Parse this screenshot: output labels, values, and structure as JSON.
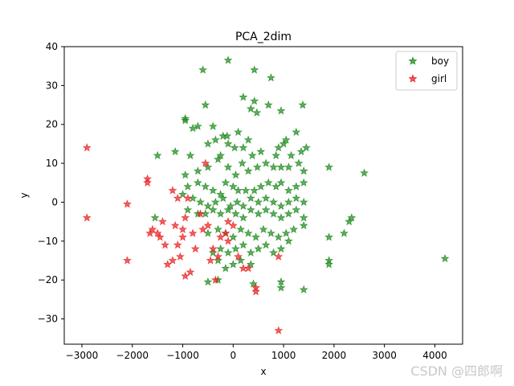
{
  "chart_data": {
    "type": "scatter",
    "title": "PCA_2dim",
    "xlabel": "x",
    "ylabel": "y",
    "xlim": [
      -3350,
      4550
    ],
    "ylim": [
      -36.5,
      40
    ],
    "xticks": [
      -3000,
      -2000,
      -1000,
      0,
      1000,
      2000,
      3000,
      4000
    ],
    "yticks": [
      -30,
      -20,
      -10,
      0,
      10,
      20,
      30,
      40
    ],
    "grid": false,
    "legend": "top-right",
    "marker": "star",
    "series": [
      {
        "name": "boy",
        "color": "#1e8a1e",
        "points": [
          [
            -100,
            36.5
          ],
          [
            420,
            34
          ],
          [
            -600,
            34
          ],
          [
            750,
            32
          ],
          [
            -950,
            21.5
          ],
          [
            200,
            27
          ],
          [
            350,
            24
          ],
          [
            420,
            26
          ],
          [
            -550,
            25
          ],
          [
            700,
            25
          ],
          [
            470,
            23
          ],
          [
            950,
            23.5
          ],
          [
            1380,
            25
          ],
          [
            -950,
            21
          ],
          [
            -800,
            19
          ],
          [
            -700,
            19.5
          ],
          [
            -400,
            19.5
          ],
          [
            -200,
            17
          ],
          [
            -100,
            15
          ],
          [
            100,
            18
          ],
          [
            300,
            16
          ],
          [
            1050,
            16
          ],
          [
            1250,
            18
          ],
          [
            1450,
            14
          ],
          [
            -1500,
            12
          ],
          [
            -1150,
            13
          ],
          [
            -850,
            12
          ],
          [
            -500,
            15
          ],
          [
            -350,
            16
          ],
          [
            -250,
            12
          ],
          [
            -120,
            17
          ],
          [
            30,
            14
          ],
          [
            200,
            14
          ],
          [
            380,
            12
          ],
          [
            550,
            13
          ],
          [
            850,
            12
          ],
          [
            900,
            14
          ],
          [
            1000,
            15
          ],
          [
            1150,
            12
          ],
          [
            1350,
            13
          ],
          [
            -950,
            7
          ],
          [
            -700,
            8
          ],
          [
            -500,
            9
          ],
          [
            -300,
            11
          ],
          [
            -100,
            9
          ],
          [
            50,
            7
          ],
          [
            180,
            10
          ],
          [
            300,
            8
          ],
          [
            480,
            9
          ],
          [
            650,
            10
          ],
          [
            800,
            9
          ],
          [
            950,
            9
          ],
          [
            1100,
            9
          ],
          [
            1300,
            10
          ],
          [
            1400,
            8
          ],
          [
            -900,
            4
          ],
          [
            -700,
            5
          ],
          [
            -550,
            4
          ],
          [
            -400,
            3
          ],
          [
            -250,
            2
          ],
          [
            -150,
            5
          ],
          [
            0,
            4
          ],
          [
            100,
            3
          ],
          [
            250,
            3
          ],
          [
            420,
            3
          ],
          [
            550,
            4
          ],
          [
            700,
            5
          ],
          [
            850,
            4
          ],
          [
            950,
            5
          ],
          [
            1100,
            3
          ],
          [
            1250,
            4
          ],
          [
            1400,
            5
          ],
          [
            1900,
            9
          ],
          [
            2600,
            7.5
          ],
          [
            -1000,
            2
          ],
          [
            -800,
            1
          ],
          [
            -650,
            0
          ],
          [
            -500,
            -1
          ],
          [
            -350,
            0
          ],
          [
            -200,
            1
          ],
          [
            -50,
            -1
          ],
          [
            80,
            0
          ],
          [
            200,
            -1
          ],
          [
            350,
            1
          ],
          [
            500,
            0
          ],
          [
            650,
            1
          ],
          [
            800,
            0
          ],
          [
            950,
            -1
          ],
          [
            1100,
            0
          ],
          [
            1250,
            1
          ],
          [
            1400,
            0
          ],
          [
            -1550,
            -4
          ],
          [
            -900,
            -2
          ],
          [
            -700,
            -3
          ],
          [
            -550,
            -3
          ],
          [
            -400,
            -2
          ],
          [
            -250,
            -3
          ],
          [
            -100,
            -2
          ],
          [
            50,
            -3
          ],
          [
            200,
            -4
          ],
          [
            350,
            -2
          ],
          [
            500,
            -3
          ],
          [
            650,
            -2
          ],
          [
            800,
            -3
          ],
          [
            950,
            -4
          ],
          [
            1100,
            -3
          ],
          [
            1250,
            -2
          ],
          [
            1400,
            -4
          ],
          [
            2350,
            -4
          ],
          [
            2300,
            -5
          ],
          [
            -500,
            -8
          ],
          [
            -300,
            -7
          ],
          [
            -150,
            -8
          ],
          [
            0,
            -9
          ],
          [
            150,
            -7
          ],
          [
            300,
            -8
          ],
          [
            450,
            -9
          ],
          [
            600,
            -7
          ],
          [
            750,
            -8
          ],
          [
            900,
            -9
          ],
          [
            1050,
            -8
          ],
          [
            1200,
            -7
          ],
          [
            1400,
            -6
          ],
          [
            1900,
            -9
          ],
          [
            2200,
            -8
          ],
          [
            -400,
            -13
          ],
          [
            -250,
            -12
          ],
          [
            -100,
            -13
          ],
          [
            50,
            -12
          ],
          [
            200,
            -11
          ],
          [
            350,
            -13
          ],
          [
            500,
            -12
          ],
          [
            650,
            -11
          ],
          [
            800,
            -13
          ],
          [
            950,
            -12
          ],
          [
            1100,
            -10
          ],
          [
            -300,
            -15
          ],
          [
            -150,
            -17
          ],
          [
            0,
            -16
          ],
          [
            150,
            -15
          ],
          [
            350,
            -16
          ],
          [
            1900,
            -15
          ],
          [
            1900,
            -16
          ],
          [
            -500,
            -20.5
          ],
          [
            -300,
            -20
          ],
          [
            400,
            -21
          ],
          [
            950,
            -20.5
          ],
          [
            950,
            -22
          ],
          [
            1400,
            -22.5
          ],
          [
            4200,
            -14.5
          ]
        ]
      },
      {
        "name": "girl",
        "color": "#e82020",
        "points": [
          [
            -2900,
            14
          ],
          [
            -2900,
            -4
          ],
          [
            -2100,
            -0.5
          ],
          [
            -2100,
            -15
          ],
          [
            -1700,
            5
          ],
          [
            -1700,
            6
          ],
          [
            -1600,
            -7
          ],
          [
            -1650,
            -8
          ],
          [
            -1500,
            -8
          ],
          [
            -1400,
            -5
          ],
          [
            -1450,
            -9
          ],
          [
            -1350,
            -11
          ],
          [
            -1300,
            -16
          ],
          [
            -1200,
            -15
          ],
          [
            -1150,
            -6
          ],
          [
            -1100,
            -11
          ],
          [
            -1050,
            -14
          ],
          [
            -1000,
            -7
          ],
          [
            -1000,
            -9
          ],
          [
            -1200,
            3
          ],
          [
            -1100,
            1
          ],
          [
            -950,
            -4
          ],
          [
            -900,
            1
          ],
          [
            -950,
            -19
          ],
          [
            -850,
            -18
          ],
          [
            -800,
            -8
          ],
          [
            -750,
            -12
          ],
          [
            -650,
            -3
          ],
          [
            -600,
            -7
          ],
          [
            -550,
            10
          ],
          [
            -500,
            -6
          ],
          [
            -450,
            -15
          ],
          [
            -400,
            -12
          ],
          [
            -350,
            -20
          ],
          [
            -300,
            -14
          ],
          [
            -250,
            -9
          ],
          [
            -150,
            -8
          ],
          [
            -100,
            -5
          ],
          [
            -100,
            -10
          ],
          [
            0,
            -6
          ],
          [
            100,
            -14
          ],
          [
            200,
            -17
          ],
          [
            300,
            -17
          ],
          [
            450,
            -22
          ],
          [
            450,
            -23
          ],
          [
            900,
            -14
          ],
          [
            900,
            -33
          ]
        ]
      }
    ]
  },
  "watermark": "CSDN @四郎啊"
}
